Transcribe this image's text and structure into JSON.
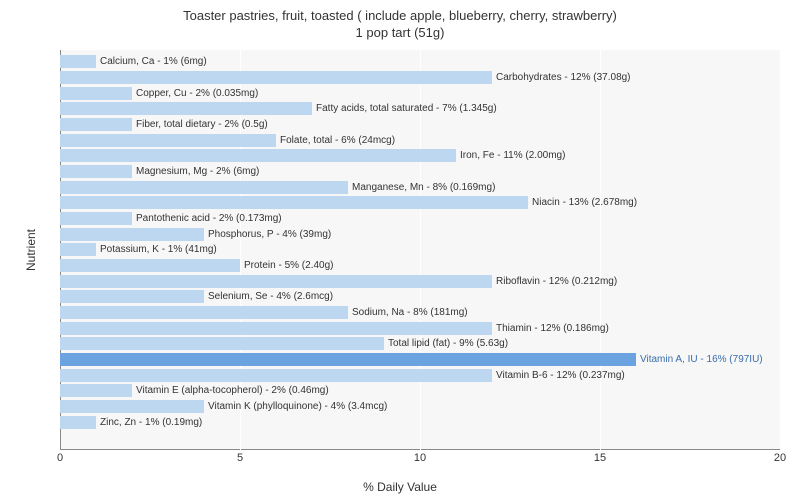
{
  "chart": {
    "type": "bar",
    "orientation": "horizontal",
    "title_line1": "Toaster pastries, fruit, toasted ( include apple, blueberry, cherry, strawberry)",
    "title_line2": "1 pop tart (51g)",
    "title_fontsize": 13,
    "xlabel": "% Daily Value",
    "ylabel": "Nutrient",
    "label_fontsize": 12,
    "xlim": [
      0,
      20
    ],
    "xticks": [
      0,
      5,
      10,
      15,
      20
    ],
    "xtick_labels": [
      "0",
      "5",
      "10",
      "15",
      "20"
    ],
    "background_color": "#ffffff",
    "plot_background_color": "#f7f7f7",
    "grid_color": "#ffffff",
    "bar_color": "#bdd7f0",
    "highlight_color": "#6ba3e0",
    "text_color": "#333333",
    "highlight_text_color": "#3a6ea8",
    "bar_label_fontsize": 10,
    "tick_fontsize": 11,
    "rows": [
      {
        "label": "Calcium, Ca - 1% (6mg)",
        "value": 1,
        "highlight": false
      },
      {
        "label": "Carbohydrates - 12% (37.08g)",
        "value": 12,
        "highlight": false
      },
      {
        "label": "Copper, Cu - 2% (0.035mg)",
        "value": 2,
        "highlight": false
      },
      {
        "label": "Fatty acids, total saturated - 7% (1.345g)",
        "value": 7,
        "highlight": false
      },
      {
        "label": "Fiber, total dietary - 2% (0.5g)",
        "value": 2,
        "highlight": false
      },
      {
        "label": "Folate, total - 6% (24mcg)",
        "value": 6,
        "highlight": false
      },
      {
        "label": "Iron, Fe - 11% (2.00mg)",
        "value": 11,
        "highlight": false
      },
      {
        "label": "Magnesium, Mg - 2% (6mg)",
        "value": 2,
        "highlight": false
      },
      {
        "label": "Manganese, Mn - 8% (0.169mg)",
        "value": 8,
        "highlight": false
      },
      {
        "label": "Niacin - 13% (2.678mg)",
        "value": 13,
        "highlight": false
      },
      {
        "label": "Pantothenic acid - 2% (0.173mg)",
        "value": 2,
        "highlight": false
      },
      {
        "label": "Phosphorus, P - 4% (39mg)",
        "value": 4,
        "highlight": false
      },
      {
        "label": "Potassium, K - 1% (41mg)",
        "value": 1,
        "highlight": false
      },
      {
        "label": "Protein - 5% (2.40g)",
        "value": 5,
        "highlight": false
      },
      {
        "label": "Riboflavin - 12% (0.212mg)",
        "value": 12,
        "highlight": false
      },
      {
        "label": "Selenium, Se - 4% (2.6mcg)",
        "value": 4,
        "highlight": false
      },
      {
        "label": "Sodium, Na - 8% (181mg)",
        "value": 8,
        "highlight": false
      },
      {
        "label": "Thiamin - 12% (0.186mg)",
        "value": 12,
        "highlight": false
      },
      {
        "label": "Total lipid (fat) - 9% (5.63g)",
        "value": 9,
        "highlight": false
      },
      {
        "label": "Vitamin A, IU - 16% (797IU)",
        "value": 16,
        "highlight": true
      },
      {
        "label": "Vitamin B-6 - 12% (0.237mg)",
        "value": 12,
        "highlight": false
      },
      {
        "label": "Vitamin E (alpha-tocopherol) - 2% (0.46mg)",
        "value": 2,
        "highlight": false
      },
      {
        "label": "Vitamin K (phylloquinone) - 4% (3.4mcg)",
        "value": 4,
        "highlight": false
      },
      {
        "label": "Zinc, Zn - 1% (0.19mg)",
        "value": 1,
        "highlight": false
      }
    ]
  }
}
